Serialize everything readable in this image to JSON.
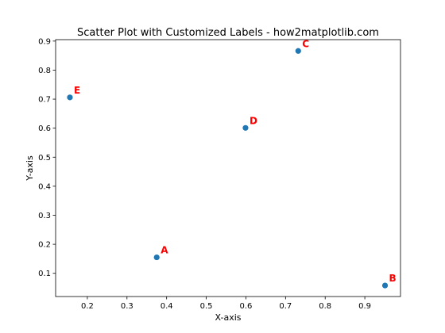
{
  "chart_data": {
    "type": "scatter",
    "title": "Scatter Plot with Customized Labels - how2matplotlib.com",
    "xlabel": "X-axis",
    "ylabel": "Y-axis",
    "xlim": [
      0.12,
      0.99
    ],
    "ylim": [
      0.02,
      0.905
    ],
    "xticks": [
      0.2,
      0.3,
      0.4,
      0.5,
      0.6,
      0.7,
      0.8,
      0.9
    ],
    "yticks": [
      0.1,
      0.2,
      0.3,
      0.4,
      0.5,
      0.6,
      0.7,
      0.8,
      0.9
    ],
    "points": [
      {
        "label": "A",
        "x": 0.375,
        "y": 0.155
      },
      {
        "label": "B",
        "x": 0.951,
        "y": 0.058
      },
      {
        "label": "C",
        "x": 0.732,
        "y": 0.866
      },
      {
        "label": "D",
        "x": 0.599,
        "y": 0.601
      },
      {
        "label": "E",
        "x": 0.156,
        "y": 0.706
      }
    ],
    "marker_color": "#1f77b4",
    "label_color": "#ff0000",
    "grid": false
  }
}
